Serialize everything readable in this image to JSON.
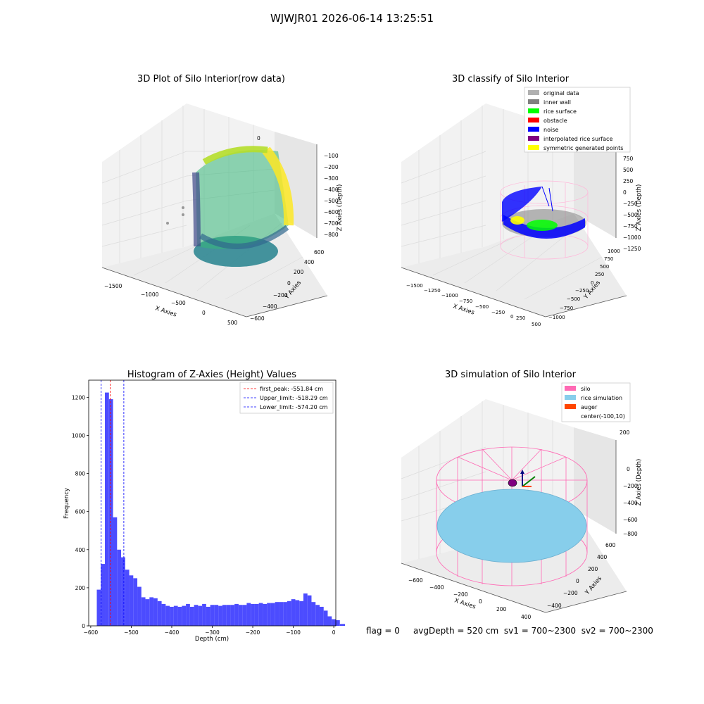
{
  "figure": {
    "suptitle": "WJWJR01 2026-06-14 13:25:51",
    "footer": {
      "flag": "flag = 0",
      "avgDepth": "avgDepth = 520 cm",
      "sv1": "sv1 = 700~2300",
      "sv2": "sv2 = 700~2300"
    }
  },
  "colors": {
    "original": "#b0b0b0",
    "inner_wall": "#808080",
    "rice_surface": "#00ff00",
    "obstacle": "#ff0000",
    "noise": "#0000ff",
    "interpolated": "#800080",
    "symmetric": "#ffff00",
    "silo": "#ff69b4",
    "rice_sim": "#87ceeb",
    "auger": "#ff4500",
    "hist_bar": "#4c4cff"
  },
  "chart_data": [
    {
      "type": "scatter",
      "title": "3D Plot of Silo Interior(row data)",
      "xlabel": "X Axies",
      "ylabel": "Y Axies",
      "zlabel": "Z Axies (Depth)",
      "x_ticks": [
        "−1500",
        "−1000",
        "−500",
        "0",
        "500"
      ],
      "y_ticks": [
        "−600",
        "−400",
        "−200",
        "0",
        "200",
        "400",
        "600"
      ],
      "z_ticks": [
        "0",
        "−100",
        "−200",
        "−300",
        "−400",
        "−500",
        "−600",
        "−700",
        "−800"
      ],
      "colormap": "viridis"
    },
    {
      "type": "scatter",
      "title": "3D classify of Silo Interior",
      "xlabel": "X Axies",
      "ylabel": "Y Axies",
      "zlabel": "Z Axies (Depth)",
      "x_ticks": [
        "−1500",
        "−1250",
        "−1000",
        "−750",
        "−500",
        "−250",
        "0",
        "250",
        "500"
      ],
      "y_ticks": [
        "−1000",
        "−750",
        "−500",
        "−250",
        "0",
        "250",
        "500",
        "750",
        "1000"
      ],
      "z_ticks": [
        "750",
        "500",
        "250",
        "0",
        "−250",
        "−500",
        "−750",
        "−1000",
        "−1250"
      ],
      "legend": [
        "original data",
        "inner wall",
        "rice surface",
        "obstacle",
        "noise",
        "interpolated rice surface",
        "symmetric generated points"
      ],
      "legend_placement": "top-right"
    },
    {
      "type": "bar",
      "title": "Histogram of Z-Axies (Height) Values",
      "xlabel": "Depth (cm)",
      "ylabel": "Frequency",
      "xlim": [
        -605,
        5
      ],
      "ylim": [
        0,
        1290
      ],
      "x_ticks": [
        -600,
        -500,
        -400,
        -300,
        -200,
        -100,
        0
      ],
      "x_tick_labels": [
        "−600",
        "−500",
        "−400",
        "−300",
        "−200",
        "−100",
        "0"
      ],
      "y_ticks": [
        0,
        200,
        400,
        600,
        800,
        1000,
        1200
      ],
      "bin_start": -585,
      "bin_width": 10,
      "values": [
        190,
        325,
        1225,
        1190,
        570,
        400,
        360,
        295,
        265,
        250,
        205,
        150,
        140,
        150,
        145,
        130,
        115,
        105,
        100,
        105,
        100,
        105,
        115,
        100,
        110,
        105,
        115,
        100,
        110,
        110,
        105,
        110,
        110,
        110,
        115,
        110,
        110,
        120,
        115,
        115,
        120,
        115,
        120,
        120,
        125,
        125,
        125,
        130,
        140,
        135,
        130,
        170,
        160,
        125,
        110,
        100,
        80,
        50,
        35,
        30,
        10,
        10
      ],
      "vlines": [
        {
          "label": "first_peak: -551.84 cm",
          "value": -551.84,
          "color": "#ff0000"
        },
        {
          "label": "Upper_limit: -518.29 cm",
          "value": -518.29,
          "color": "#0000ff"
        },
        {
          "label": "Lower_limit: -574.20 cm",
          "value": -574.2,
          "color": "#0000ff"
        }
      ],
      "legend_placement": "top-right"
    },
    {
      "type": "scatter",
      "title": "3D simulation of Silo Interior",
      "xlabel": "X Axies",
      "ylabel": "Y Axies",
      "zlabel": "Z Axies (Depth)",
      "x_ticks": [
        "−600",
        "−400",
        "−200",
        "0",
        "200",
        "400"
      ],
      "y_ticks": [
        "−400",
        "−200",
        "0",
        "200",
        "400",
        "600"
      ],
      "z_ticks": [
        "200",
        "0",
        "−200",
        "−400",
        "−600",
        "−800"
      ],
      "legend": [
        "silo",
        "rice simulation",
        "auger",
        "center(-100,10)"
      ],
      "legend_placement": "top-right"
    }
  ]
}
